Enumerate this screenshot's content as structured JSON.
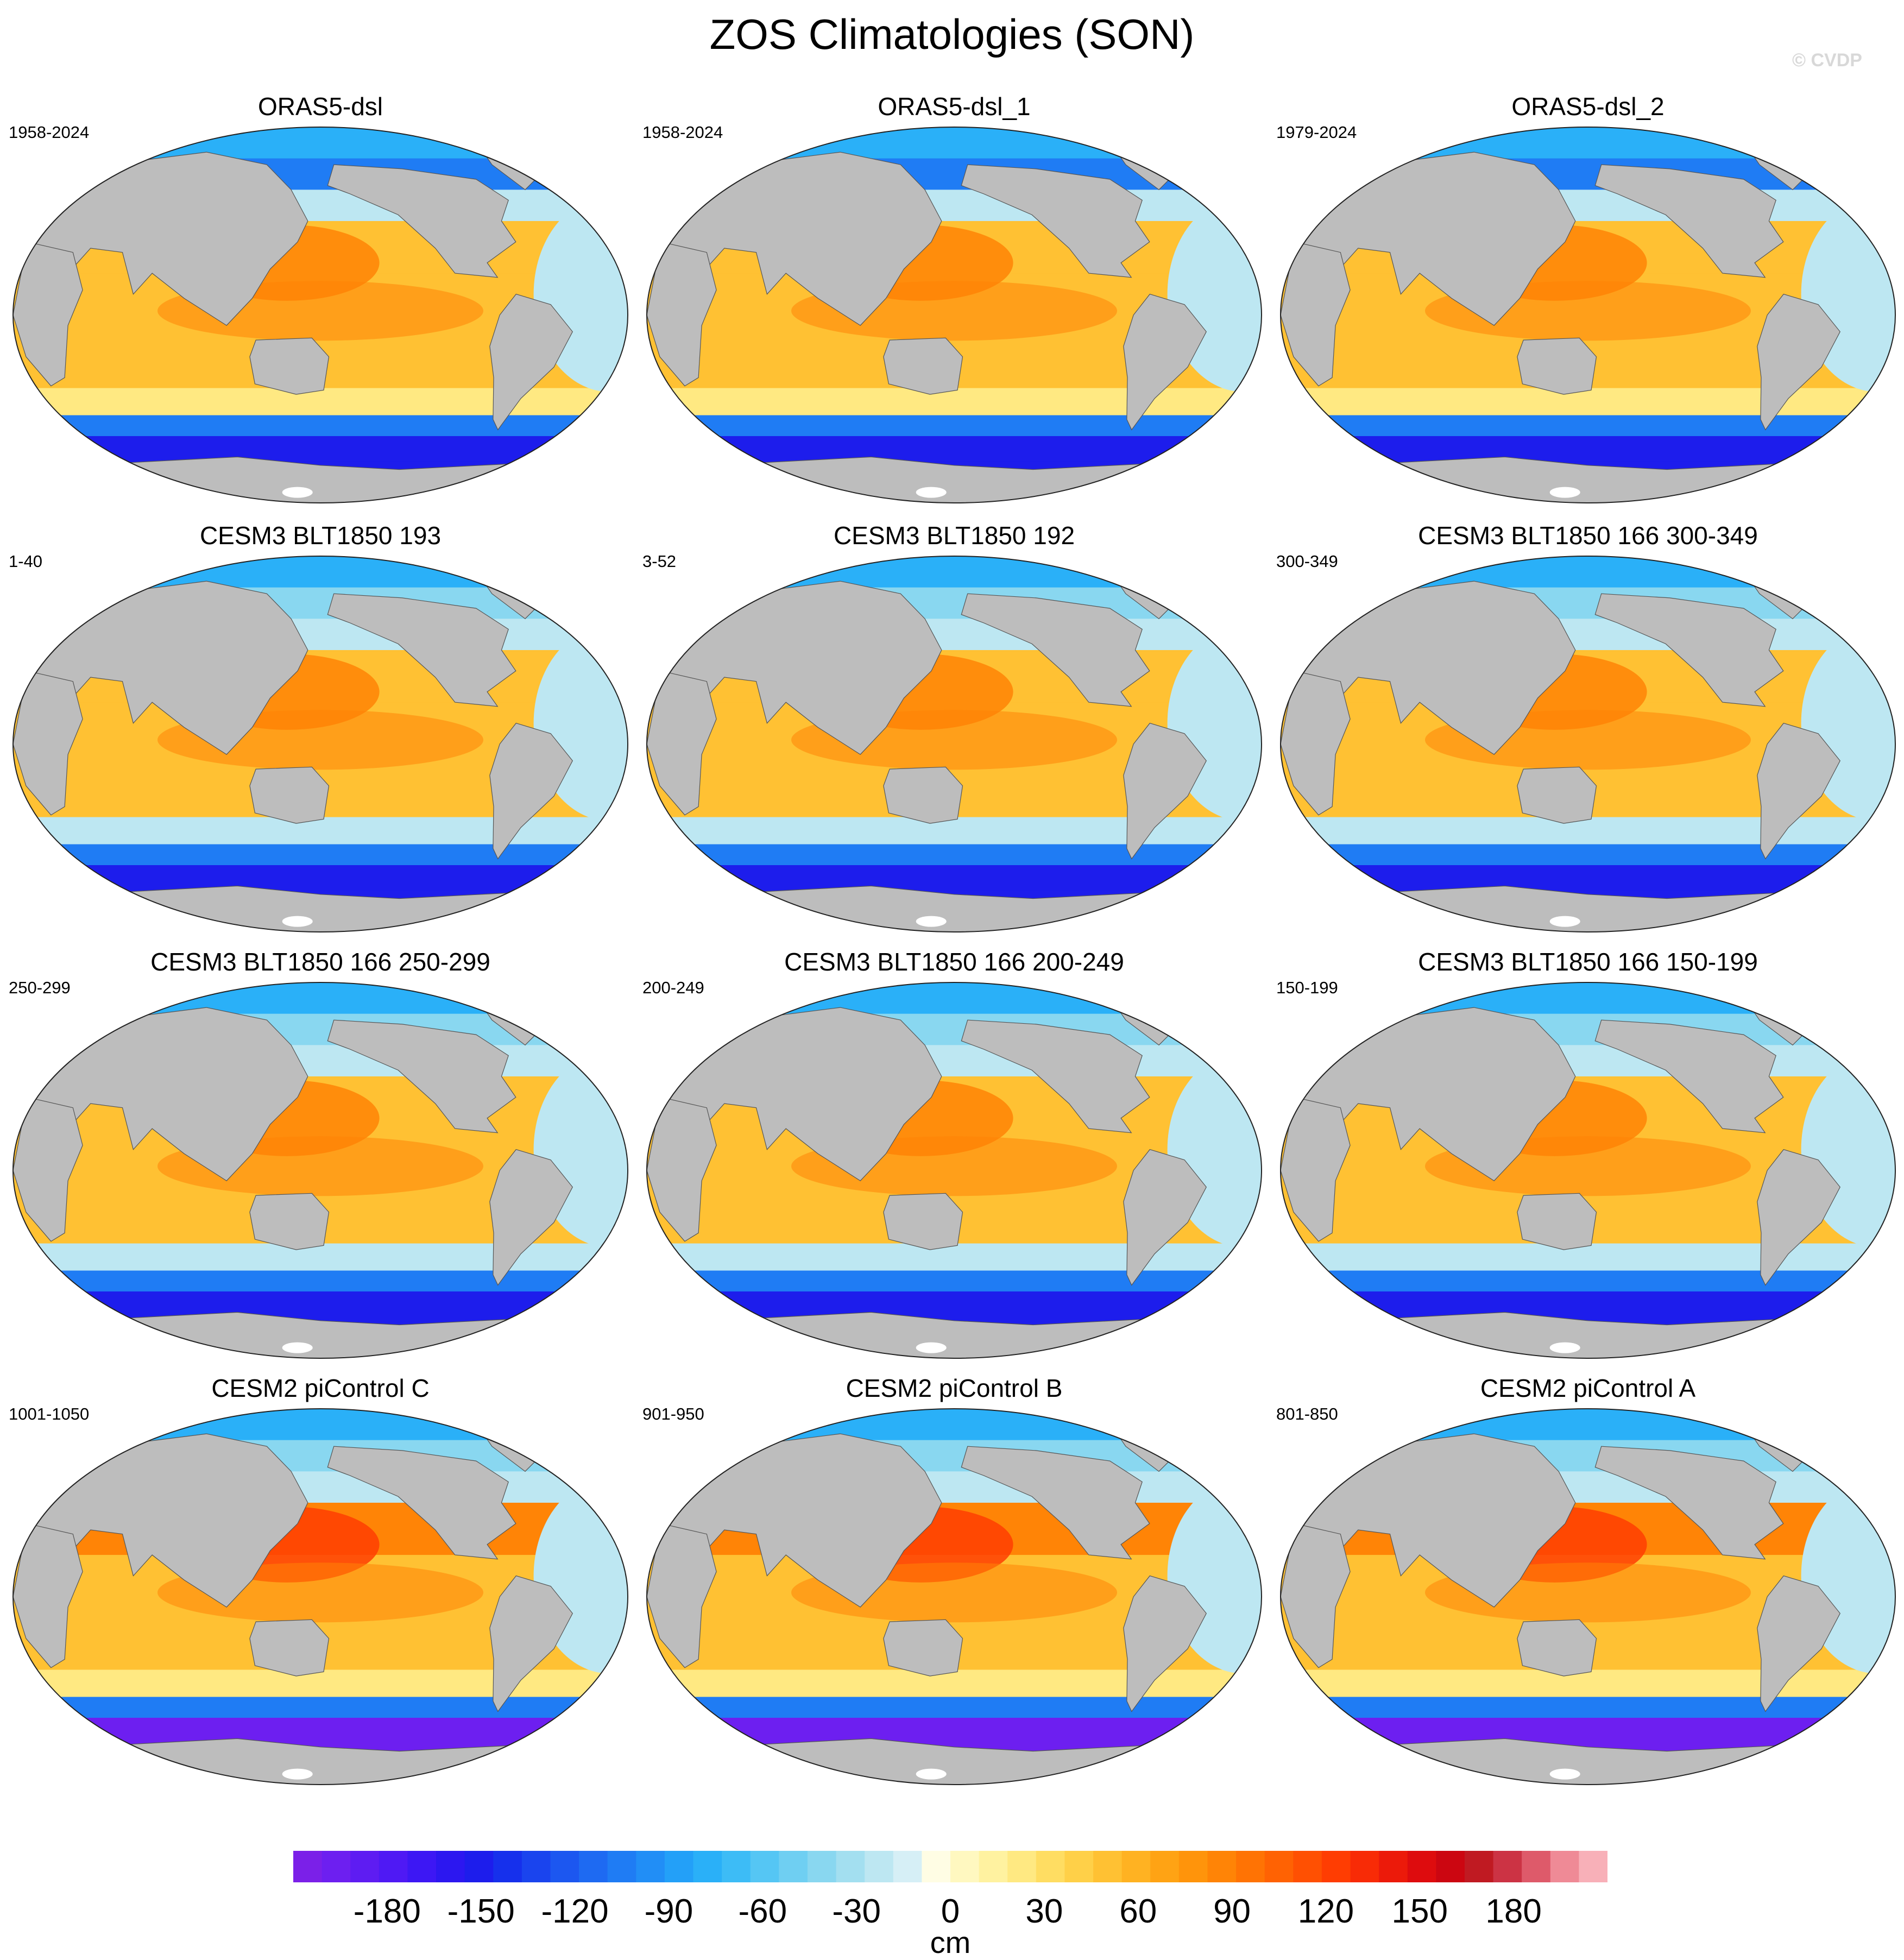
{
  "figure": {
    "title": "ZOS Climatologies (SON)",
    "watermark": "© CVDP",
    "units": "cm"
  },
  "colors": {
    "land": "#bdbdbd",
    "ice": "#ffffff",
    "outline": "#222222"
  },
  "panels": [
    {
      "title": "ORAS5-dsl",
      "years": "1958-2024",
      "style": "obs"
    },
    {
      "title": "ORAS5-dsl_1",
      "years": "1958-2024",
      "style": "obs"
    },
    {
      "title": "ORAS5-dsl_2",
      "years": "1979-2024",
      "style": "obs"
    },
    {
      "title": "CESM3 BLT1850 193",
      "years": "1-40",
      "style": "cesm3"
    },
    {
      "title": "CESM3 BLT1850 192",
      "years": "3-52",
      "style": "cesm3"
    },
    {
      "title": "CESM3 BLT1850 166 300-349",
      "years": "300-349",
      "style": "cesm3"
    },
    {
      "title": "CESM3 BLT1850 166 250-299",
      "years": "250-299",
      "style": "cesm3"
    },
    {
      "title": "CESM3 BLT1850 166 200-249",
      "years": "200-249",
      "style": "cesm3"
    },
    {
      "title": "CESM3 BLT1850 166 150-199",
      "years": "150-199",
      "style": "cesm3"
    },
    {
      "title": "CESM2 piControl C",
      "years": "1001-1050",
      "style": "cesm2"
    },
    {
      "title": "CESM2 piControl B",
      "years": "901-950",
      "style": "cesm2"
    },
    {
      "title": "CESM2 piControl A",
      "years": "801-850",
      "style": "cesm2"
    }
  ],
  "colorbar": {
    "min": -210,
    "max": 210,
    "ticks": [
      -180,
      -150,
      -120,
      -90,
      -60,
      -30,
      0,
      30,
      60,
      90,
      120,
      150,
      180
    ],
    "tick_labels": [
      "-180",
      "-150",
      "-120",
      "-90",
      "-60",
      "-30",
      "0",
      "30",
      "60",
      "90",
      "120",
      "150",
      "180"
    ],
    "label": "cm",
    "colors": [
      "#7b20e8",
      "#6d1ff0",
      "#5e1cf2",
      "#4f19f4",
      "#3d17f4",
      "#2c17f0",
      "#1d1dec",
      "#1630ec",
      "#1a44ee",
      "#1c57f0",
      "#1e6af2",
      "#1f7cf4",
      "#218ef6",
      "#23a0f8",
      "#2ab0f8",
      "#3dbcf6",
      "#55c6f4",
      "#6fcff2",
      "#89d7f0",
      "#a3dff0",
      "#bde7f2",
      "#d6eff6",
      "#fffde4",
      "#fff8c0",
      "#fff2a0",
      "#ffe982",
      "#ffdd62",
      "#ffd048",
      "#ffc133",
      "#ffb222",
      "#ffa314",
      "#ff940b",
      "#ff8406",
      "#ff7304",
      "#ff6203",
      "#ff5002",
      "#ff3d02",
      "#f82b06",
      "#ec1a0a",
      "#de0c0e",
      "#cc0611",
      "#c01a22",
      "#cc3344",
      "#de5a6a",
      "#ef8a96",
      "#f8b0b8"
    ]
  }
}
